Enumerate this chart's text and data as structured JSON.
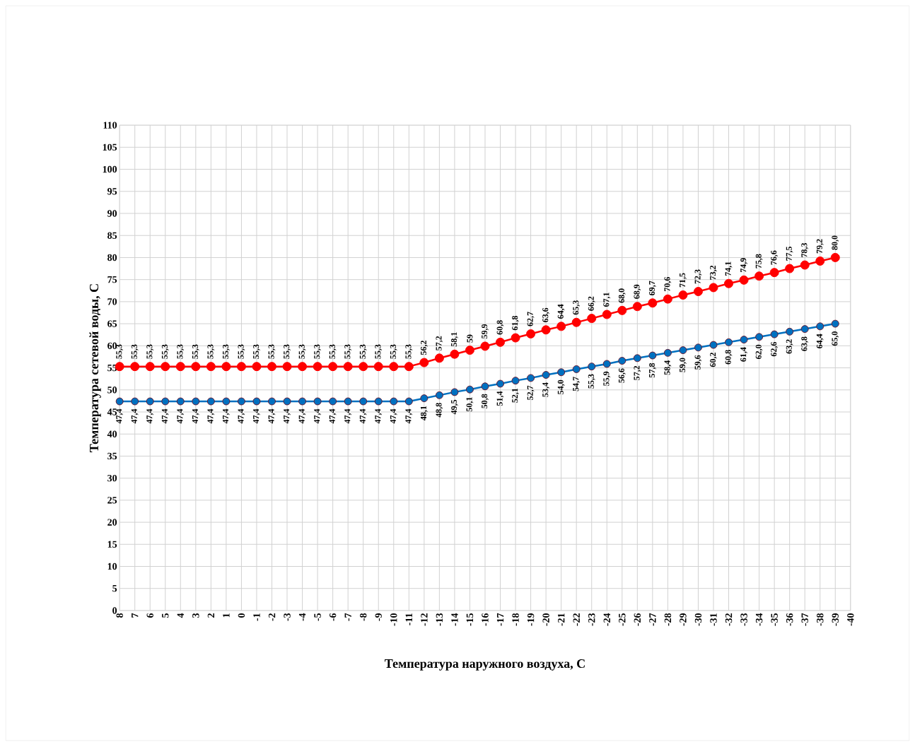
{
  "chart_data": {
    "type": "line",
    "xlabel": "Температура наружного воздуха, С",
    "ylabel": "Температура сетевой воды, С",
    "categories": [
      "8",
      "7",
      "6",
      "5",
      "4",
      "3",
      "2",
      "1",
      "0",
      "-1",
      "-2",
      "-3",
      "-4",
      "-5",
      "-6",
      "-7",
      "-8",
      "-9",
      "-10",
      "-11",
      "-12",
      "-13",
      "-14",
      "-15",
      "-16",
      "-17",
      "-18",
      "-19",
      "-20",
      "-21",
      "-22",
      "-23",
      "-24",
      "-25",
      "-26",
      "-27",
      "-28",
      "-29",
      "-30",
      "-31",
      "-32",
      "-33",
      "-34",
      "-35",
      "-36",
      "-37",
      "-38",
      "-39",
      "-40"
    ],
    "ylim": [
      0,
      110
    ],
    "yticks": [
      0,
      5,
      10,
      15,
      20,
      25,
      30,
      35,
      40,
      45,
      50,
      55,
      60,
      65,
      70,
      75,
      80,
      85,
      90,
      95,
      100,
      105,
      110
    ],
    "grid": true,
    "marker": "circle",
    "series": [
      {
        "color": "#ff0000",
        "values": [
          55.3,
          55.3,
          55.3,
          55.3,
          55.3,
          55.3,
          55.3,
          55.3,
          55.3,
          55.3,
          55.3,
          55.3,
          55.3,
          55.3,
          55.3,
          55.3,
          55.3,
          55.3,
          55.3,
          55.3,
          56.2,
          57.2,
          58.1,
          59,
          59.9,
          60.8,
          61.8,
          62.7,
          63.6,
          64.4,
          65.3,
          66.2,
          67.1,
          68.0,
          68.9,
          69.7,
          70.6,
          71.5,
          72.3,
          73.2,
          74.1,
          74.9,
          75.8,
          76.6,
          77.5,
          78.3,
          79.2,
          80.0,
          null
        ],
        "value_labels": [
          "55,3",
          "55,3",
          "55,3",
          "55,3",
          "55,3",
          "55,3",
          "55,3",
          "55,3",
          "55,3",
          "55,3",
          "55,3",
          "55,3",
          "55,3",
          "55,3",
          "55,3",
          "55,3",
          "55,3",
          "55,3",
          "55,3",
          "55,3",
          "56,2",
          "57,2",
          "58,1",
          "59",
          "59,9",
          "60,8",
          "61,8",
          "62,7",
          "63,6",
          "64,4",
          "65,3",
          "66,2",
          "67,1",
          "68,0",
          "68,9",
          "69,7",
          "70,6",
          "71,5",
          "72,3",
          "73,2",
          "74,1",
          "74,9",
          "75,8",
          "76,6",
          "77,5",
          "78,3",
          "79,2",
          "80,0",
          null
        ]
      },
      {
        "color": "#0070c0",
        "values": [
          47.4,
          47.4,
          47.4,
          47.4,
          47.4,
          47.4,
          47.4,
          47.4,
          47.4,
          47.4,
          47.4,
          47.4,
          47.4,
          47.4,
          47.4,
          47.4,
          47.4,
          47.4,
          47.4,
          47.4,
          48.1,
          48.8,
          49.5,
          50.1,
          50.8,
          51.4,
          52.1,
          52.7,
          53.4,
          54.0,
          54.7,
          55.3,
          55.9,
          56.6,
          57.2,
          57.8,
          58.4,
          59.0,
          59.6,
          60.2,
          60.8,
          61.4,
          62.0,
          62.6,
          63.2,
          63.8,
          64.4,
          65.0,
          null
        ],
        "value_labels": [
          "47,4",
          "47,4",
          "47,4",
          "47,4",
          "47,4",
          "47,4",
          "47,4",
          "47,4",
          "47,4",
          "47,4",
          "47,4",
          "47,4",
          "47,4",
          "47,4",
          "47,4",
          "47,4",
          "47,4",
          "47,4",
          "47,4",
          "47,4",
          "48,1",
          "48,8",
          "49,5",
          "50,1",
          "50,8",
          "51,4",
          "52,1",
          "52,7",
          "53,4",
          "54,0",
          "54,7",
          "55,3",
          "55,9",
          "56,6",
          "57,2",
          "57,8",
          "58,4",
          "59,0",
          "59,6",
          "60,2",
          "60,8",
          "61,4",
          "62,0",
          "62,6",
          "63,2",
          "63,8",
          "64,4",
          "65,0",
          null
        ]
      }
    ]
  }
}
